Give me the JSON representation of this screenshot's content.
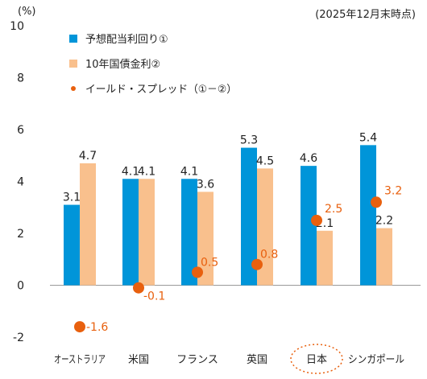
{
  "chart_data": {
    "type": "bar",
    "y_unit_label": "(%)",
    "as_of_note": "(2025年12月末時点)",
    "categories": [
      "オーストラリア",
      "米国",
      "フランス",
      "英国",
      "日本",
      "シンガポール"
    ],
    "highlighted_category": "日本",
    "ylim": [
      -2,
      10
    ],
    "yticks": [
      -2,
      0,
      2,
      4,
      6,
      8,
      10
    ],
    "grid": false,
    "legend_position": "top-left",
    "series": [
      {
        "name": "予想配当利回り①",
        "kind": "bar",
        "color": "#0095D9",
        "values": [
          3.1,
          4.1,
          4.1,
          5.3,
          4.6,
          5.4
        ],
        "labels": [
          "3.1",
          "4.1",
          "4.1",
          "5.3",
          "4.6",
          "5.4"
        ]
      },
      {
        "name": "10年国債金利②",
        "kind": "bar",
        "color": "#F9C08D",
        "values": [
          4.7,
          4.1,
          3.6,
          4.5,
          2.1,
          2.2
        ],
        "labels": [
          "4.7",
          "4.1",
          "3.6",
          "4.5",
          "2.1",
          "2.2"
        ]
      },
      {
        "name": "イールド・スプレッド（①－②）",
        "kind": "dot",
        "color": "#E8600E",
        "values": [
          -1.6,
          -0.1,
          0.5,
          0.8,
          2.5,
          3.2
        ],
        "labels": [
          "-1.6",
          "-0.1",
          "0.5",
          "0.8",
          "2.5",
          "3.2"
        ]
      }
    ]
  }
}
